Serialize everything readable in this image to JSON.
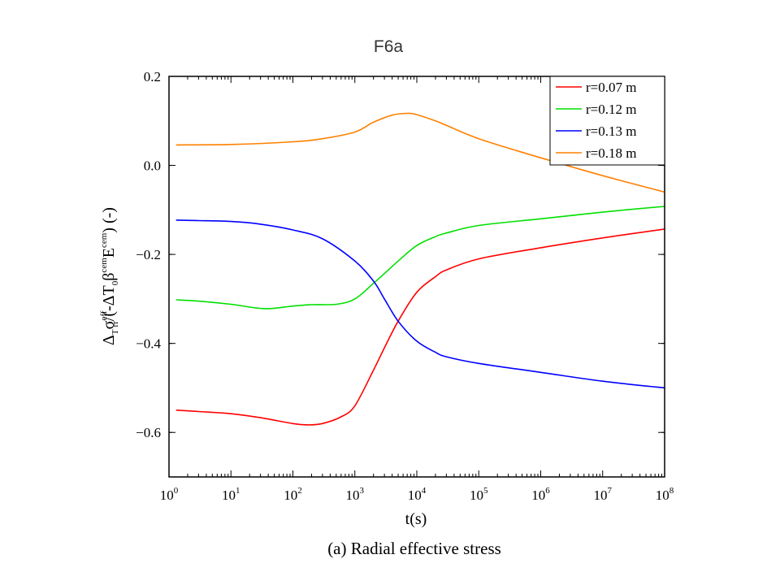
{
  "chart_data": {
    "type": "line",
    "title": "F6a",
    "xlabel": "t(s)",
    "ylabel": "Δ_Tσ_rr^eff/(-ΔT_0β^cem E^cem) (-)",
    "ylabel_parts": {
      "a": "Δ",
      "a_sub": "T",
      "b": "σ",
      "b_sup": "eff",
      "b_sub": "rr",
      "c": "/(-ΔT",
      "c_sub": "0",
      "d": "β",
      "d_sup": "cem",
      "e": "E",
      "e_sup": "cem",
      "f": ") (-)"
    },
    "caption": "(a) Radial effective stress",
    "xscale": "log",
    "xlim": [
      1,
      100000000
    ],
    "ylim": [
      -0.7,
      0.2
    ],
    "x_ticks": [
      {
        "base": "10",
        "exp": "0",
        "value": 1
      },
      {
        "base": "10",
        "exp": "1",
        "value": 10
      },
      {
        "base": "10",
        "exp": "2",
        "value": 100
      },
      {
        "base": "10",
        "exp": "3",
        "value": 1000
      },
      {
        "base": "10",
        "exp": "4",
        "value": 10000
      },
      {
        "base": "10",
        "exp": "5",
        "value": 100000
      },
      {
        "base": "10",
        "exp": "6",
        "value": 1000000
      },
      {
        "base": "10",
        "exp": "7",
        "value": 10000000
      },
      {
        "base": "10",
        "exp": "8",
        "value": 100000000
      }
    ],
    "y_ticks": [
      {
        "label": "0.2",
        "value": 0.2
      },
      {
        "label": "0.0",
        "value": 0.0
      },
      {
        "label": "−0.2",
        "value": -0.2
      },
      {
        "label": "−0.4",
        "value": -0.4
      },
      {
        "label": "−0.6",
        "value": -0.6
      }
    ],
    "legend_position": "top-right",
    "grid": false,
    "series": [
      {
        "name": "r=0.07 m",
        "color": "#ff0000",
        "x": [
          1.3,
          3,
          10,
          30,
          100,
          178,
          300,
          600,
          1000,
          2000,
          3000,
          5000,
          10000,
          20000,
          30000,
          100000,
          1000000,
          10000000,
          100000000
        ],
        "y": [
          -0.55,
          -0.553,
          -0.558,
          -0.567,
          -0.58,
          -0.583,
          -0.58,
          -0.565,
          -0.54,
          -0.46,
          -0.41,
          -0.35,
          -0.285,
          -0.25,
          -0.235,
          -0.21,
          -0.185,
          -0.163,
          -0.143
        ]
      },
      {
        "name": "r=0.12 m",
        "color": "#00e000",
        "x": [
          1.3,
          3,
          10,
          35,
          100,
          200,
          500,
          1000,
          2000,
          5000,
          10000,
          20000,
          30000,
          100000,
          1000000,
          10000000,
          100000000
        ],
        "y": [
          -0.302,
          -0.305,
          -0.312,
          -0.322,
          -0.316,
          -0.313,
          -0.312,
          -0.3,
          -0.265,
          -0.215,
          -0.18,
          -0.16,
          -0.152,
          -0.135,
          -0.12,
          -0.105,
          -0.092
        ]
      },
      {
        "name": "r=0.13 m",
        "color": "#0000ff",
        "x": [
          1.3,
          3,
          10,
          30,
          100,
          300,
          1000,
          2000,
          3000,
          5000,
          10000,
          20000,
          30000,
          100000,
          1000000,
          10000000,
          100000000
        ],
        "y": [
          -0.123,
          -0.124,
          -0.126,
          -0.132,
          -0.145,
          -0.165,
          -0.215,
          -0.26,
          -0.3,
          -0.35,
          -0.395,
          -0.42,
          -0.43,
          -0.445,
          -0.465,
          -0.485,
          -0.5
        ]
      },
      {
        "name": "r=0.18 m",
        "color": "#ff8000",
        "x": [
          1.3,
          10,
          100,
          300,
          1000,
          2000,
          4000,
          7000,
          10000,
          20000,
          30000,
          100000,
          1000000,
          10000000,
          100000000
        ],
        "y": [
          0.046,
          0.047,
          0.053,
          0.06,
          0.075,
          0.097,
          0.113,
          0.117,
          0.114,
          0.1,
          0.09,
          0.06,
          0.017,
          -0.023,
          -0.06
        ]
      }
    ]
  }
}
